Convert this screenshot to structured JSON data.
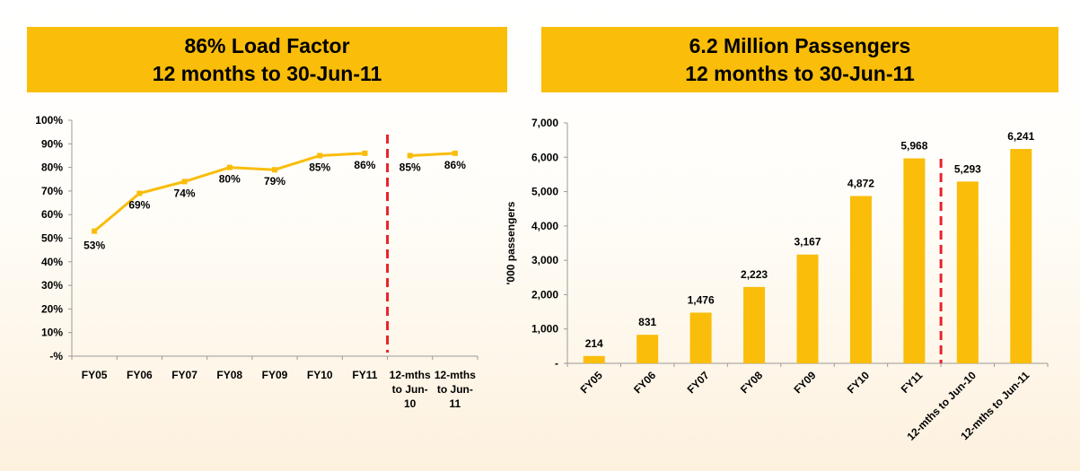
{
  "left_panel": {
    "title_line1": "86% Load Factor",
    "title_line2": "12 months to 30-Jun-11"
  },
  "right_panel": {
    "title_line1": "6.2 Million Passengers",
    "title_line2": "12 months to 30-Jun-11"
  },
  "colors": {
    "accent": "#f9bd0a",
    "divider": "#e8222a"
  },
  "chart_data": [
    {
      "type": "line",
      "title": "86% Load Factor 12 months to 30-Jun-11",
      "categories": [
        "FY05",
        "FY06",
        "FY07",
        "FY08",
        "FY09",
        "FY10",
        "FY11",
        "12-mths to Jun-10",
        "12-mths to Jun-11"
      ],
      "category_lines": [
        [
          "FY05"
        ],
        [
          "FY06"
        ],
        [
          "FY07"
        ],
        [
          "FY08"
        ],
        [
          "FY09"
        ],
        [
          "FY10"
        ],
        [
          "FY11"
        ],
        [
          "12-mths",
          "to Jun-",
          "10"
        ],
        [
          "12-mths",
          "to Jun-",
          "11"
        ]
      ],
      "values": [
        53,
        69,
        74,
        80,
        79,
        85,
        86,
        85,
        86
      ],
      "data_labels": [
        "53%",
        "69%",
        "74%",
        "80%",
        "79%",
        "85%",
        "86%",
        "85%",
        "86%"
      ],
      "yticks": [
        "-%",
        "10%",
        "20%",
        "30%",
        "40%",
        "50%",
        "60%",
        "70%",
        "80%",
        "90%",
        "100%"
      ],
      "ylim": [
        0,
        100
      ],
      "line_break_after_index": 6,
      "grid": false,
      "xlabel": "",
      "ylabel": ""
    },
    {
      "type": "bar",
      "title": "6.2 Million Passengers 12 months to 30-Jun-11",
      "categories": [
        "FY05",
        "FY06",
        "FY07",
        "FY08",
        "FY09",
        "FY10",
        "FY11",
        "12-mths to Jun-10",
        "12-mths to Jun-11"
      ],
      "values": [
        214,
        831,
        1476,
        2223,
        3167,
        4872,
        5968,
        5293,
        6241
      ],
      "data_labels": [
        "214",
        "831",
        "1,476",
        "2,223",
        "3,167",
        "4,872",
        "5,968",
        "5,293",
        "6,241"
      ],
      "yticks": [
        "-",
        "1,000",
        "2,000",
        "3,000",
        "4,000",
        "5,000",
        "6,000",
        "7,000"
      ],
      "ylim": [
        0,
        7000
      ],
      "ylabel": "'000 passengers",
      "xlabel": "",
      "divider_after_index": 6,
      "grid": false
    }
  ]
}
